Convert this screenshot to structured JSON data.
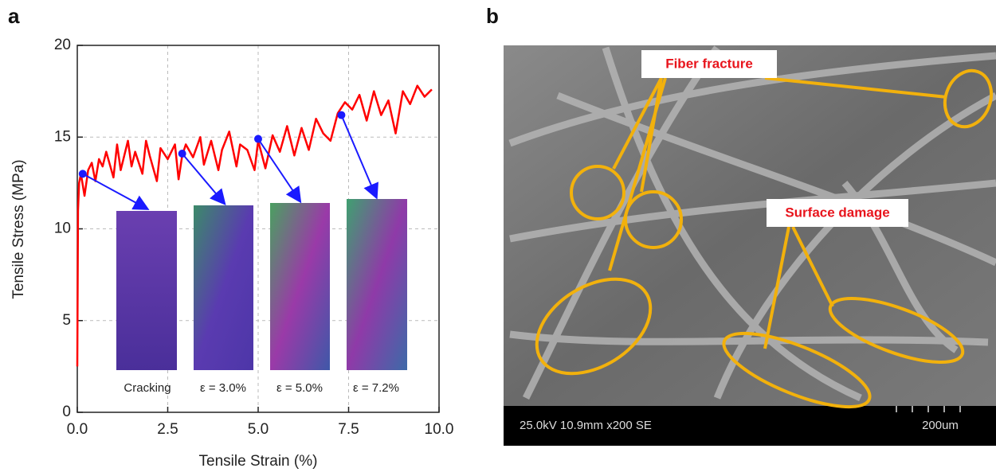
{
  "chart_data": {
    "type": "line",
    "panel_label": "a",
    "xlabel": "Tensile Strain (%)",
    "ylabel": "Tensile Stress (MPa)",
    "x": [
      0,
      0.02,
      0.05,
      0.1,
      0.2,
      0.3,
      0.4,
      0.5,
      0.6,
      0.7,
      0.8,
      1.0,
      1.1,
      1.2,
      1.4,
      1.5,
      1.6,
      1.8,
      1.9,
      2.0,
      2.2,
      2.3,
      2.5,
      2.7,
      2.8,
      2.9,
      3.0,
      3.2,
      3.4,
      3.5,
      3.7,
      3.9,
      4.0,
      4.2,
      4.4,
      4.5,
      4.7,
      4.9,
      5.0,
      5.2,
      5.4,
      5.6,
      5.8,
      6.0,
      6.2,
      6.4,
      6.6,
      6.8,
      7.0,
      7.2,
      7.4,
      7.6,
      7.8,
      8.0,
      8.2,
      8.4,
      8.6,
      8.8,
      9.0,
      9.2,
      9.4,
      9.6,
      9.8
    ],
    "series": [
      {
        "color": "#ff0000",
        "values": [
          2.5,
          11,
          12.5,
          13,
          11.8,
          13.2,
          13.6,
          12.6,
          13.8,
          13.4,
          14.2,
          12.8,
          14.6,
          13.2,
          14.8,
          13.4,
          14.2,
          13.0,
          14.8,
          14.0,
          12.6,
          14.4,
          13.8,
          14.6,
          12.7,
          14.0,
          14.6,
          13.9,
          15.0,
          13.5,
          14.8,
          13.2,
          14.3,
          15.3,
          13.4,
          14.6,
          14.3,
          13.2,
          14.8,
          13.3,
          15.1,
          14.2,
          15.6,
          14.0,
          15.5,
          14.3,
          16.0,
          15.2,
          14.8,
          16.3,
          16.9,
          16.5,
          17.3,
          15.9,
          17.5,
          16.2,
          17.0,
          15.2,
          17.5,
          16.8,
          17.8,
          17.2,
          17.6
        ]
      }
    ],
    "markers": {
      "color": "#1a1aff",
      "x": [
        0.15,
        2.9,
        5.0,
        7.3
      ],
      "y": [
        13.0,
        14.1,
        14.9,
        16.2
      ]
    },
    "inset_labels": [
      "Cracking",
      "ε = 3.0%",
      "ε = 5.0%",
      "ε = 7.2%"
    ],
    "xlim": [
      0,
      10
    ],
    "ylim": [
      0,
      20
    ],
    "xticks": [
      {
        "value": 0,
        "label": "0.0"
      },
      2.5,
      {
        "value": 5,
        "label": "5.0"
      },
      7.5,
      {
        "value": 10,
        "label": "10.0"
      }
    ],
    "yticks": [
      0,
      5,
      10,
      15,
      20
    ],
    "grid": true
  },
  "panel_b": {
    "panel_label": "b",
    "callouts": [
      "Fiber fracture",
      "Surface damage"
    ],
    "info_bar": "25.0kV 10.9mm x200 SE",
    "scale_bar": "200um"
  }
}
